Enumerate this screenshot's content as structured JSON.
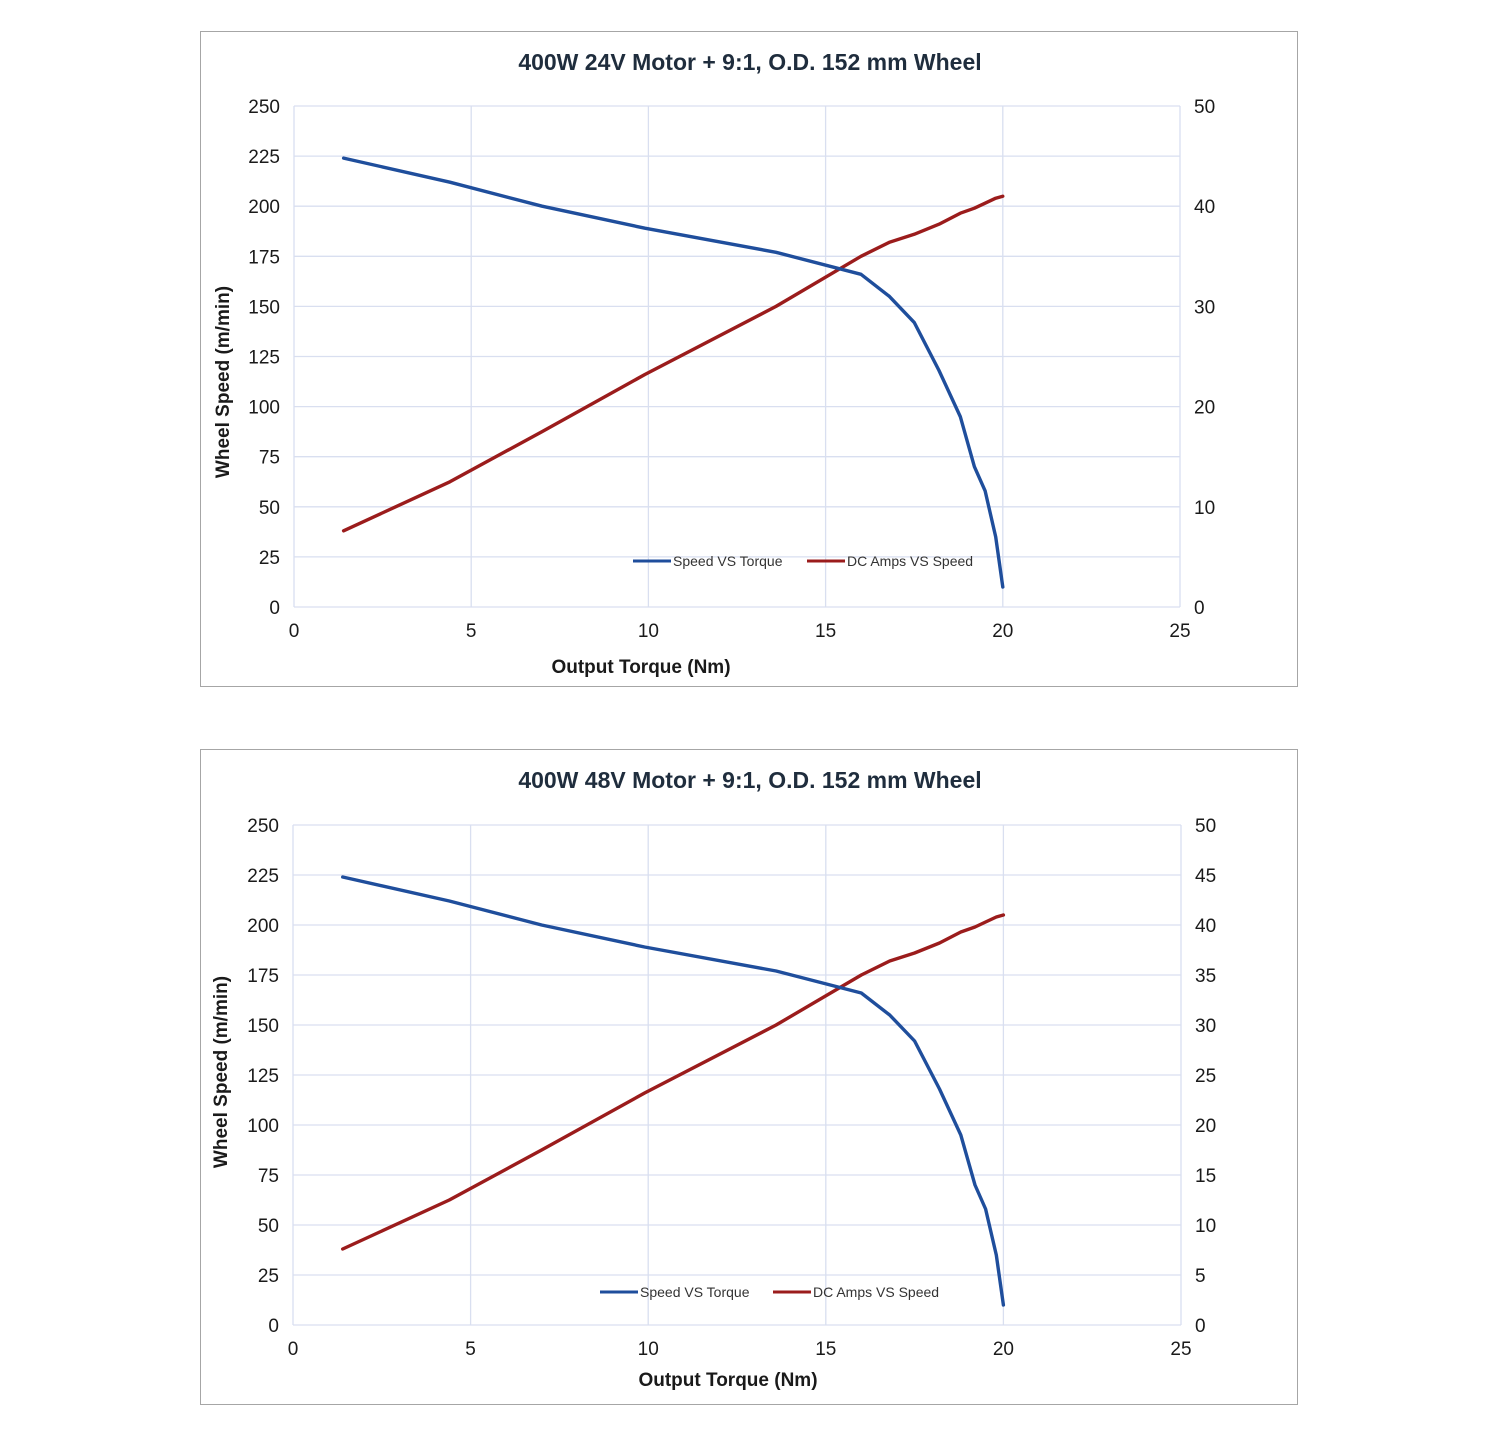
{
  "charts": [
    {
      "title": "400W 24V Motor + 9:1, O.D. 152 mm Wheel",
      "xlabel": "Output Torque  (Nm)",
      "ylabel": "Wheel Speed (m/min)",
      "x_ticks": [
        "0",
        "5",
        "10",
        "15",
        "20",
        "25"
      ],
      "y_ticks": [
        "0",
        "25",
        "50",
        "75",
        "100",
        "125",
        "150",
        "175",
        "200",
        "225",
        "250"
      ],
      "y2_ticks": [
        "0",
        "10",
        "20",
        "30",
        "40",
        "50"
      ],
      "legend": [
        "Speed VS Torque",
        "DC Amps VS Speed"
      ]
    },
    {
      "title": "400W 48V Motor + 9:1, O.D. 152 mm Wheel",
      "xlabel": "Output Torque  (Nm)",
      "ylabel": "Wheel Speed (m/min)",
      "x_ticks": [
        "0",
        "5",
        "10",
        "15",
        "20",
        "25"
      ],
      "y_ticks": [
        "0",
        "25",
        "50",
        "75",
        "100",
        "125",
        "150",
        "175",
        "200",
        "225",
        "250"
      ],
      "y2_ticks": [
        "0",
        "5",
        "10",
        "15",
        "20",
        "25",
        "30",
        "35",
        "40",
        "45",
        "50"
      ],
      "legend": [
        "Speed VS Torque",
        "DC Amps VS Speed"
      ]
    }
  ],
  "colors": {
    "speed": "#1f4e9c",
    "amps": "#9b1c1c",
    "grid": "#d9dff0"
  },
  "chart_data": [
    {
      "type": "line",
      "title": "400W 24V Motor + 9:1, O.D. 152 mm Wheel",
      "xlabel": "Output Torque  (Nm)",
      "ylabel": "Wheel Speed (m/min)",
      "xlim": [
        0,
        25
      ],
      "ylim": [
        0,
        250
      ],
      "y2lim": [
        0,
        50
      ],
      "grid": true,
      "legend_position": "bottom-center",
      "series": [
        {
          "name": "Speed VS Torque",
          "axis": "left",
          "x": [
            1.4,
            4.4,
            7.0,
            9.9,
            13.6,
            16.0,
            16.8,
            17.5,
            18.2,
            18.8,
            19.2,
            19.5,
            19.8,
            20.0
          ],
          "y": [
            224,
            212,
            200,
            189,
            177,
            166,
            155,
            142,
            118,
            95,
            70,
            58,
            35,
            10
          ]
        },
        {
          "name": "DC Amps VS Speed",
          "axis": "right",
          "x": [
            1.4,
            4.4,
            7.0,
            9.9,
            13.6,
            16.0,
            16.8,
            17.5,
            18.2,
            18.8,
            19.2,
            19.5,
            19.8,
            20.0
          ],
          "y": [
            7.6,
            12.5,
            17.5,
            23.2,
            30.0,
            35.0,
            36.4,
            37.2,
            38.2,
            39.3,
            39.8,
            40.3,
            40.8,
            41.0
          ]
        }
      ]
    },
    {
      "type": "line",
      "title": "400W 48V Motor + 9:1, O.D. 152 mm Wheel",
      "xlabel": "Output Torque  (Nm)",
      "ylabel": "Wheel Speed (m/min)",
      "xlim": [
        0,
        25
      ],
      "ylim": [
        0,
        250
      ],
      "y2lim": [
        0,
        50
      ],
      "grid": true,
      "legend_position": "bottom-center",
      "series": [
        {
          "name": "Speed VS Torque",
          "axis": "left",
          "x": [
            1.4,
            4.4,
            7.0,
            9.9,
            13.6,
            16.0,
            16.8,
            17.5,
            18.2,
            18.8,
            19.2,
            19.5,
            19.8,
            20.0
          ],
          "y": [
            224,
            212,
            200,
            189,
            177,
            166,
            155,
            142,
            118,
            95,
            70,
            58,
            35,
            10
          ]
        },
        {
          "name": "DC Amps VS Speed",
          "axis": "right",
          "x": [
            1.4,
            4.4,
            7.0,
            9.9,
            13.6,
            16.0,
            16.8,
            17.5,
            18.2,
            18.8,
            19.2,
            19.5,
            19.8,
            20.0
          ],
          "y": [
            7.6,
            12.5,
            17.5,
            23.2,
            30.0,
            35.0,
            36.4,
            37.2,
            38.2,
            39.3,
            39.8,
            40.3,
            40.8,
            41.0
          ]
        }
      ]
    }
  ]
}
